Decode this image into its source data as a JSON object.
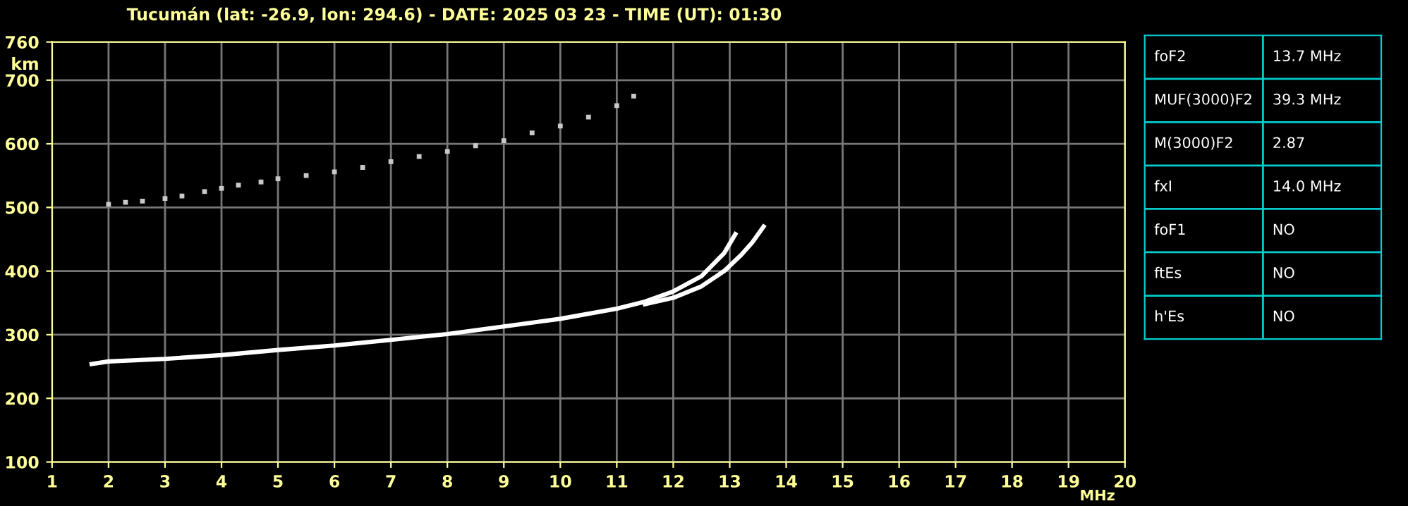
{
  "chart_data": [
    {
      "type": "line",
      "title": "Tucumán (lat: -26.9, lon: 294.6) - DATE: 2025 03 23 - TIME (UT): 01:30",
      "xlabel": "MHz",
      "ylabel": "km",
      "xlim": [
        1,
        20
      ],
      "xticks": [
        1,
        2,
        3,
        4,
        5,
        6,
        7,
        8,
        9,
        10,
        11,
        12,
        13,
        14,
        15,
        16,
        17,
        18,
        19,
        20
      ],
      "ylim": [
        100,
        760
      ],
      "yticks": [
        100,
        200,
        300,
        400,
        500,
        600,
        700,
        760
      ],
      "grid": true,
      "series": [
        {
          "color": "#ffffff",
          "x": [
            1.7,
            2,
            3,
            4,
            5,
            6,
            7,
            8,
            9,
            10,
            11,
            11.5,
            12,
            12.5,
            12.9,
            13.1
          ],
          "values": [
            254,
            258,
            262,
            268,
            276,
            283,
            292,
            301,
            313,
            325,
            341,
            352,
            368,
            392,
            428,
            458
          ]
        },
        {
          "color": "#ffffff",
          "x": [
            11.5,
            12,
            12.5,
            12.9,
            13.2,
            13.4,
            13.6
          ],
          "values": [
            348,
            358,
            376,
            400,
            425,
            445,
            470
          ]
        },
        {
          "type": "scatter",
          "marker": "square",
          "color": "#c8c8c8",
          "x": [
            2.0,
            2.3,
            2.6,
            3.0,
            3.3,
            3.7,
            4.0,
            4.3,
            4.7,
            5.0,
            5.5,
            6.0,
            6.5,
            7.0,
            7.5,
            8.0,
            8.5,
            9.0,
            9.5,
            10.0,
            10.5,
            11.0,
            11.3
          ],
          "values": [
            505,
            508,
            510,
            514,
            518,
            525,
            530,
            535,
            540,
            545,
            550,
            556,
            563,
            572,
            580,
            588,
            597,
            605,
            617,
            628,
            642,
            660,
            675
          ]
        }
      ]
    },
    {
      "type": "other",
      "annotations": [
        "foF2",
        "13.7 MHz",
        "MUF(3000)F2",
        "39.3 MHz",
        "M(3000)F2",
        "2.87",
        "fxI",
        "14.0 MHz",
        "foF1",
        "NO",
        "ftEs",
        "NO",
        "h'Es",
        "NO"
      ]
    }
  ]
}
